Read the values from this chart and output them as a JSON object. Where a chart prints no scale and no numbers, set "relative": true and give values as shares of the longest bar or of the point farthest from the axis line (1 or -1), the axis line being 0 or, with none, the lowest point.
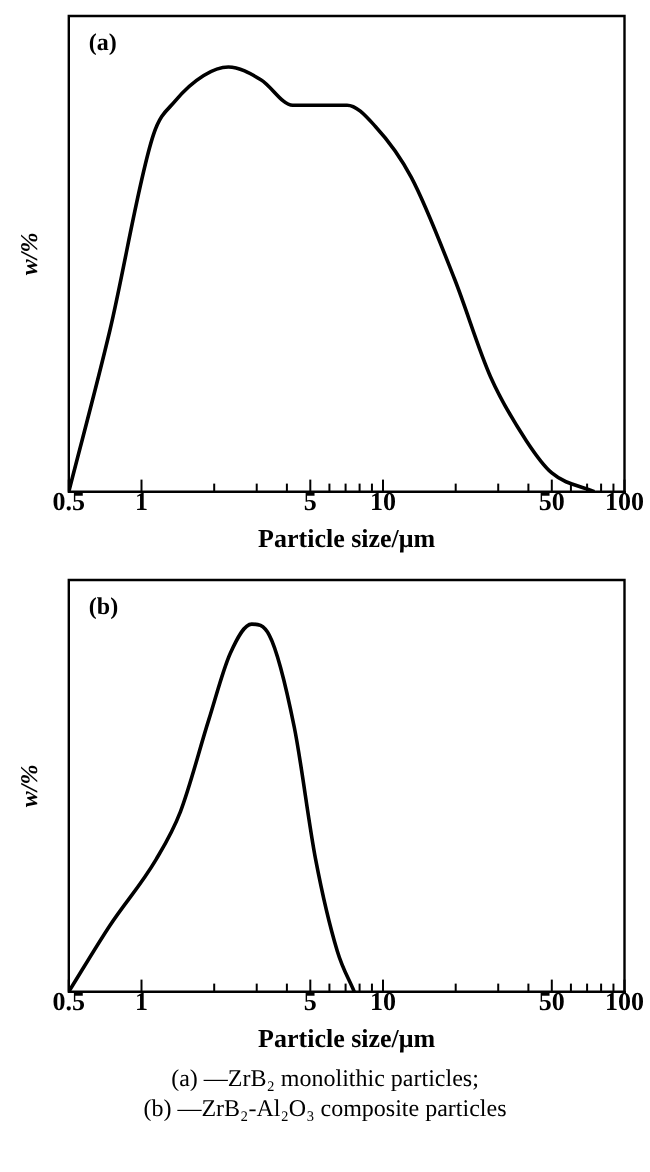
{
  "chart_data": [
    {
      "type": "line",
      "title": "(a)",
      "xlabel": "Particle size/μm",
      "ylabel": "w/%",
      "log": "x",
      "relative": true,
      "tick_labels": "x",
      "grid": false,
      "legend": false,
      "marker": "none",
      "line_style": "solid",
      "xlim": [
        0.5,
        100
      ],
      "xticks": [
        0.5,
        1,
        {
          "value": 2,
          "label": null
        },
        {
          "value": 3,
          "label": null
        },
        {
          "value": 4,
          "label": null
        },
        5,
        {
          "value": 6,
          "label": null
        },
        {
          "value": 7,
          "label": null
        },
        {
          "value": 8,
          "label": null
        },
        {
          "value": 9,
          "label": null
        },
        10,
        {
          "value": 20,
          "label": null
        },
        {
          "value": 30,
          "label": null
        },
        {
          "value": 40,
          "label": null
        },
        50,
        {
          "value": 60,
          "label": null
        },
        {
          "value": 70,
          "label": null
        },
        {
          "value": 80,
          "label": null
        },
        {
          "value": 90,
          "label": null
        },
        100
      ],
      "x": [
        0.5,
        0.74,
        1.12,
        1.38,
        1.81,
        2.29,
        3.12,
        4.23,
        7.1,
        9.3,
        13.1,
        19.8,
        27.9,
        39.2,
        50,
        75
      ],
      "series": [
        {
          "color": "#000000",
          "values": [
            0,
            0.38,
            0.84,
            0.92,
            0.98,
            1,
            0.97,
            0.91,
            0.91,
            0.86,
            0.74,
            0.5,
            0.27,
            0.12,
            0.044,
            0
          ]
        }
      ]
    },
    {
      "type": "line",
      "title": "(b)",
      "xlabel": "Particle size/μm",
      "ylabel": "w/%",
      "log": "x",
      "relative": true,
      "tick_labels": "x",
      "grid": false,
      "legend": false,
      "marker": "none",
      "line_style": "solid",
      "xlim": [
        0.5,
        100
      ],
      "xticks": [
        0.5,
        1,
        {
          "value": 2,
          "label": null
        },
        {
          "value": 3,
          "label": null
        },
        {
          "value": 4,
          "label": null
        },
        5,
        {
          "value": 6,
          "label": null
        },
        {
          "value": 7,
          "label": null
        },
        {
          "value": 8,
          "label": null
        },
        {
          "value": 9,
          "label": null
        },
        10,
        {
          "value": 20,
          "label": null
        },
        {
          "value": 30,
          "label": null
        },
        {
          "value": 40,
          "label": null
        },
        50,
        {
          "value": 60,
          "label": null
        },
        {
          "value": 70,
          "label": null
        },
        {
          "value": 80,
          "label": null
        },
        {
          "value": 90,
          "label": null
        },
        100
      ],
      "x": [
        0.5,
        0.74,
        1.15,
        1.45,
        1.9,
        2.33,
        2.86,
        3.38,
        4.29,
        5.26,
        6.47,
        7.6
      ],
      "series": [
        {
          "color": "#000000",
          "values": [
            0,
            0.18,
            0.36,
            0.49,
            0.74,
            0.92,
            1,
            0.97,
            0.72,
            0.36,
            0.11,
            0
          ]
        }
      ],
      "annotations": [
        "(a) —ZrB₂ monolithic particles;",
        "(b) —ZrB₂-Al₂O₃ composite particles"
      ]
    }
  ]
}
